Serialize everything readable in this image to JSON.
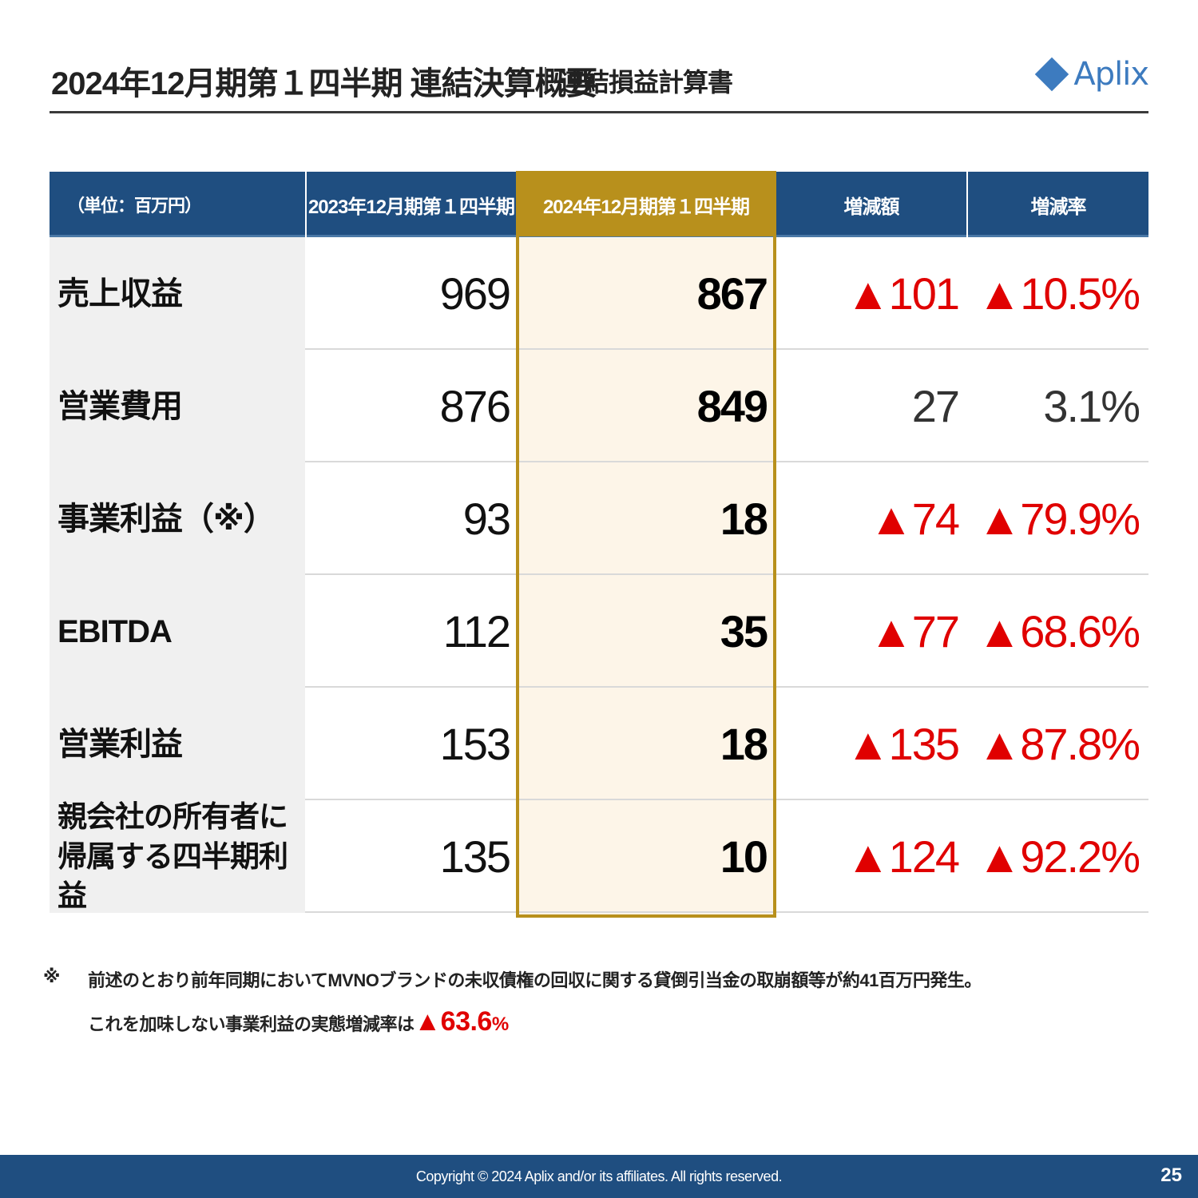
{
  "header": {
    "title": "2024年12月期第１四半期 連結決算概要",
    "subtitle": "連結損益計算書",
    "logo_text": "Aplix",
    "logo_icon": "diamond-icon"
  },
  "table": {
    "unit_label": "（単位：百万円）",
    "col_prev": "2023年12月期第１四半期",
    "col_curr": "2024年12月期第１四半期",
    "col_diff": "増減額",
    "col_rate": "増減率",
    "rows": [
      {
        "label": "売上収益",
        "prev": "969",
        "curr": "867",
        "diff": "▲101",
        "rate": "▲10.5%"
      },
      {
        "label": "営業費用",
        "prev": "876",
        "curr": "849",
        "diff": "27",
        "rate": "3.1%"
      },
      {
        "label": "事業利益（※）",
        "prev": "93",
        "curr": "18",
        "diff": "▲74",
        "rate": "▲79.9%"
      },
      {
        "label": "EBITDA",
        "prev": "112",
        "curr": "35",
        "diff": "▲77",
        "rate": "▲68.6%"
      },
      {
        "label": "営業利益",
        "prev": "153",
        "curr": "18",
        "diff": "▲135",
        "rate": "▲87.8%"
      },
      {
        "label_line1": "親会社の所有者に",
        "label_line2": "帰属する四半期利益",
        "prev": "135",
        "curr": "10",
        "diff": "▲124",
        "rate": "▲92.2%"
      }
    ]
  },
  "note": {
    "mark": "※",
    "line1": "前述のとおり前年同期においてMVNOブランドの未収債権の回収に関する貸倒引当金の取崩額等が約41百万円発生。",
    "line2_prefix": "これを加味しない事業利益の実態増減率は",
    "line2_value": "▲63.6",
    "line2_unit": "%"
  },
  "footer": {
    "copyright": "Copyright © 2024  Aplix and/or its affiliates. All rights reserved.",
    "page_number": "25"
  },
  "colors": {
    "header_blue": "#1f4e80",
    "highlight_gold": "#b8901c",
    "highlight_fill": "#fdf5e8",
    "negative_red": "#e00000",
    "logo_blue": "#3d7bbf"
  }
}
